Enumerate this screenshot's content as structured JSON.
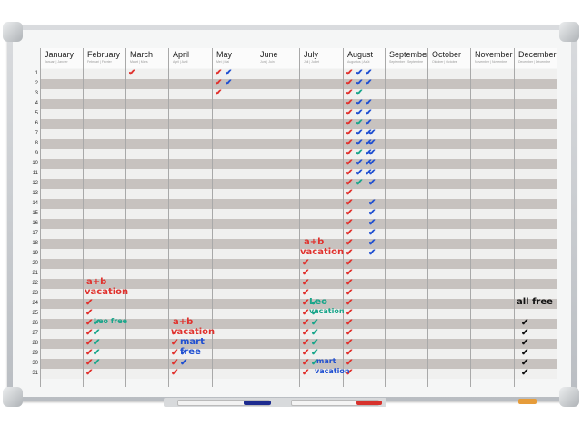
{
  "months": [
    {
      "name": "January",
      "sub": "Januari | Janvier"
    },
    {
      "name": "February",
      "sub": "Februari | Février"
    },
    {
      "name": "March",
      "sub": "Maart | Mars"
    },
    {
      "name": "April",
      "sub": "April | Avril"
    },
    {
      "name": "May",
      "sub": "Mei | Mai"
    },
    {
      "name": "June",
      "sub": "Juni | Juin"
    },
    {
      "name": "July",
      "sub": "Juli | Juillet"
    },
    {
      "name": "August",
      "sub": "Augustus | Août"
    },
    {
      "name": "September",
      "sub": "September | Septembre"
    },
    {
      "name": "October",
      "sub": "Oktober | Octobre"
    },
    {
      "name": "November",
      "sub": "November | Novembre"
    },
    {
      "name": "December",
      "sub": "December | Décembre"
    }
  ],
  "days": [
    "1",
    "2",
    "3",
    "4",
    "5",
    "6",
    "7",
    "8",
    "9",
    "10",
    "11",
    "12",
    "13",
    "14",
    "15",
    "16",
    "17",
    "18",
    "19",
    "20",
    "21",
    "22",
    "23",
    "24",
    "25",
    "26",
    "27",
    "28",
    "29",
    "30",
    "31"
  ],
  "handwriting": {
    "feb_note1": "a+b",
    "feb_note2": "vacation",
    "feb_note3": "Leo free",
    "apr_note1": "a+b",
    "apr_note2": "vacation",
    "apr_note3": "mart",
    "apr_note4": "free",
    "jul_note1": "a+b",
    "jul_note2": "vacation",
    "jul_note3": "Leo",
    "jul_note4": "vacation",
    "jul_note5": "mart",
    "jul_note6": "vacation",
    "dec_note1": "all free"
  },
  "colors": {
    "red": "#e0322e",
    "blue": "#1f4fd1",
    "teal": "#18a58a",
    "black": "#111111",
    "grey_row": "#c7c2bf"
  }
}
